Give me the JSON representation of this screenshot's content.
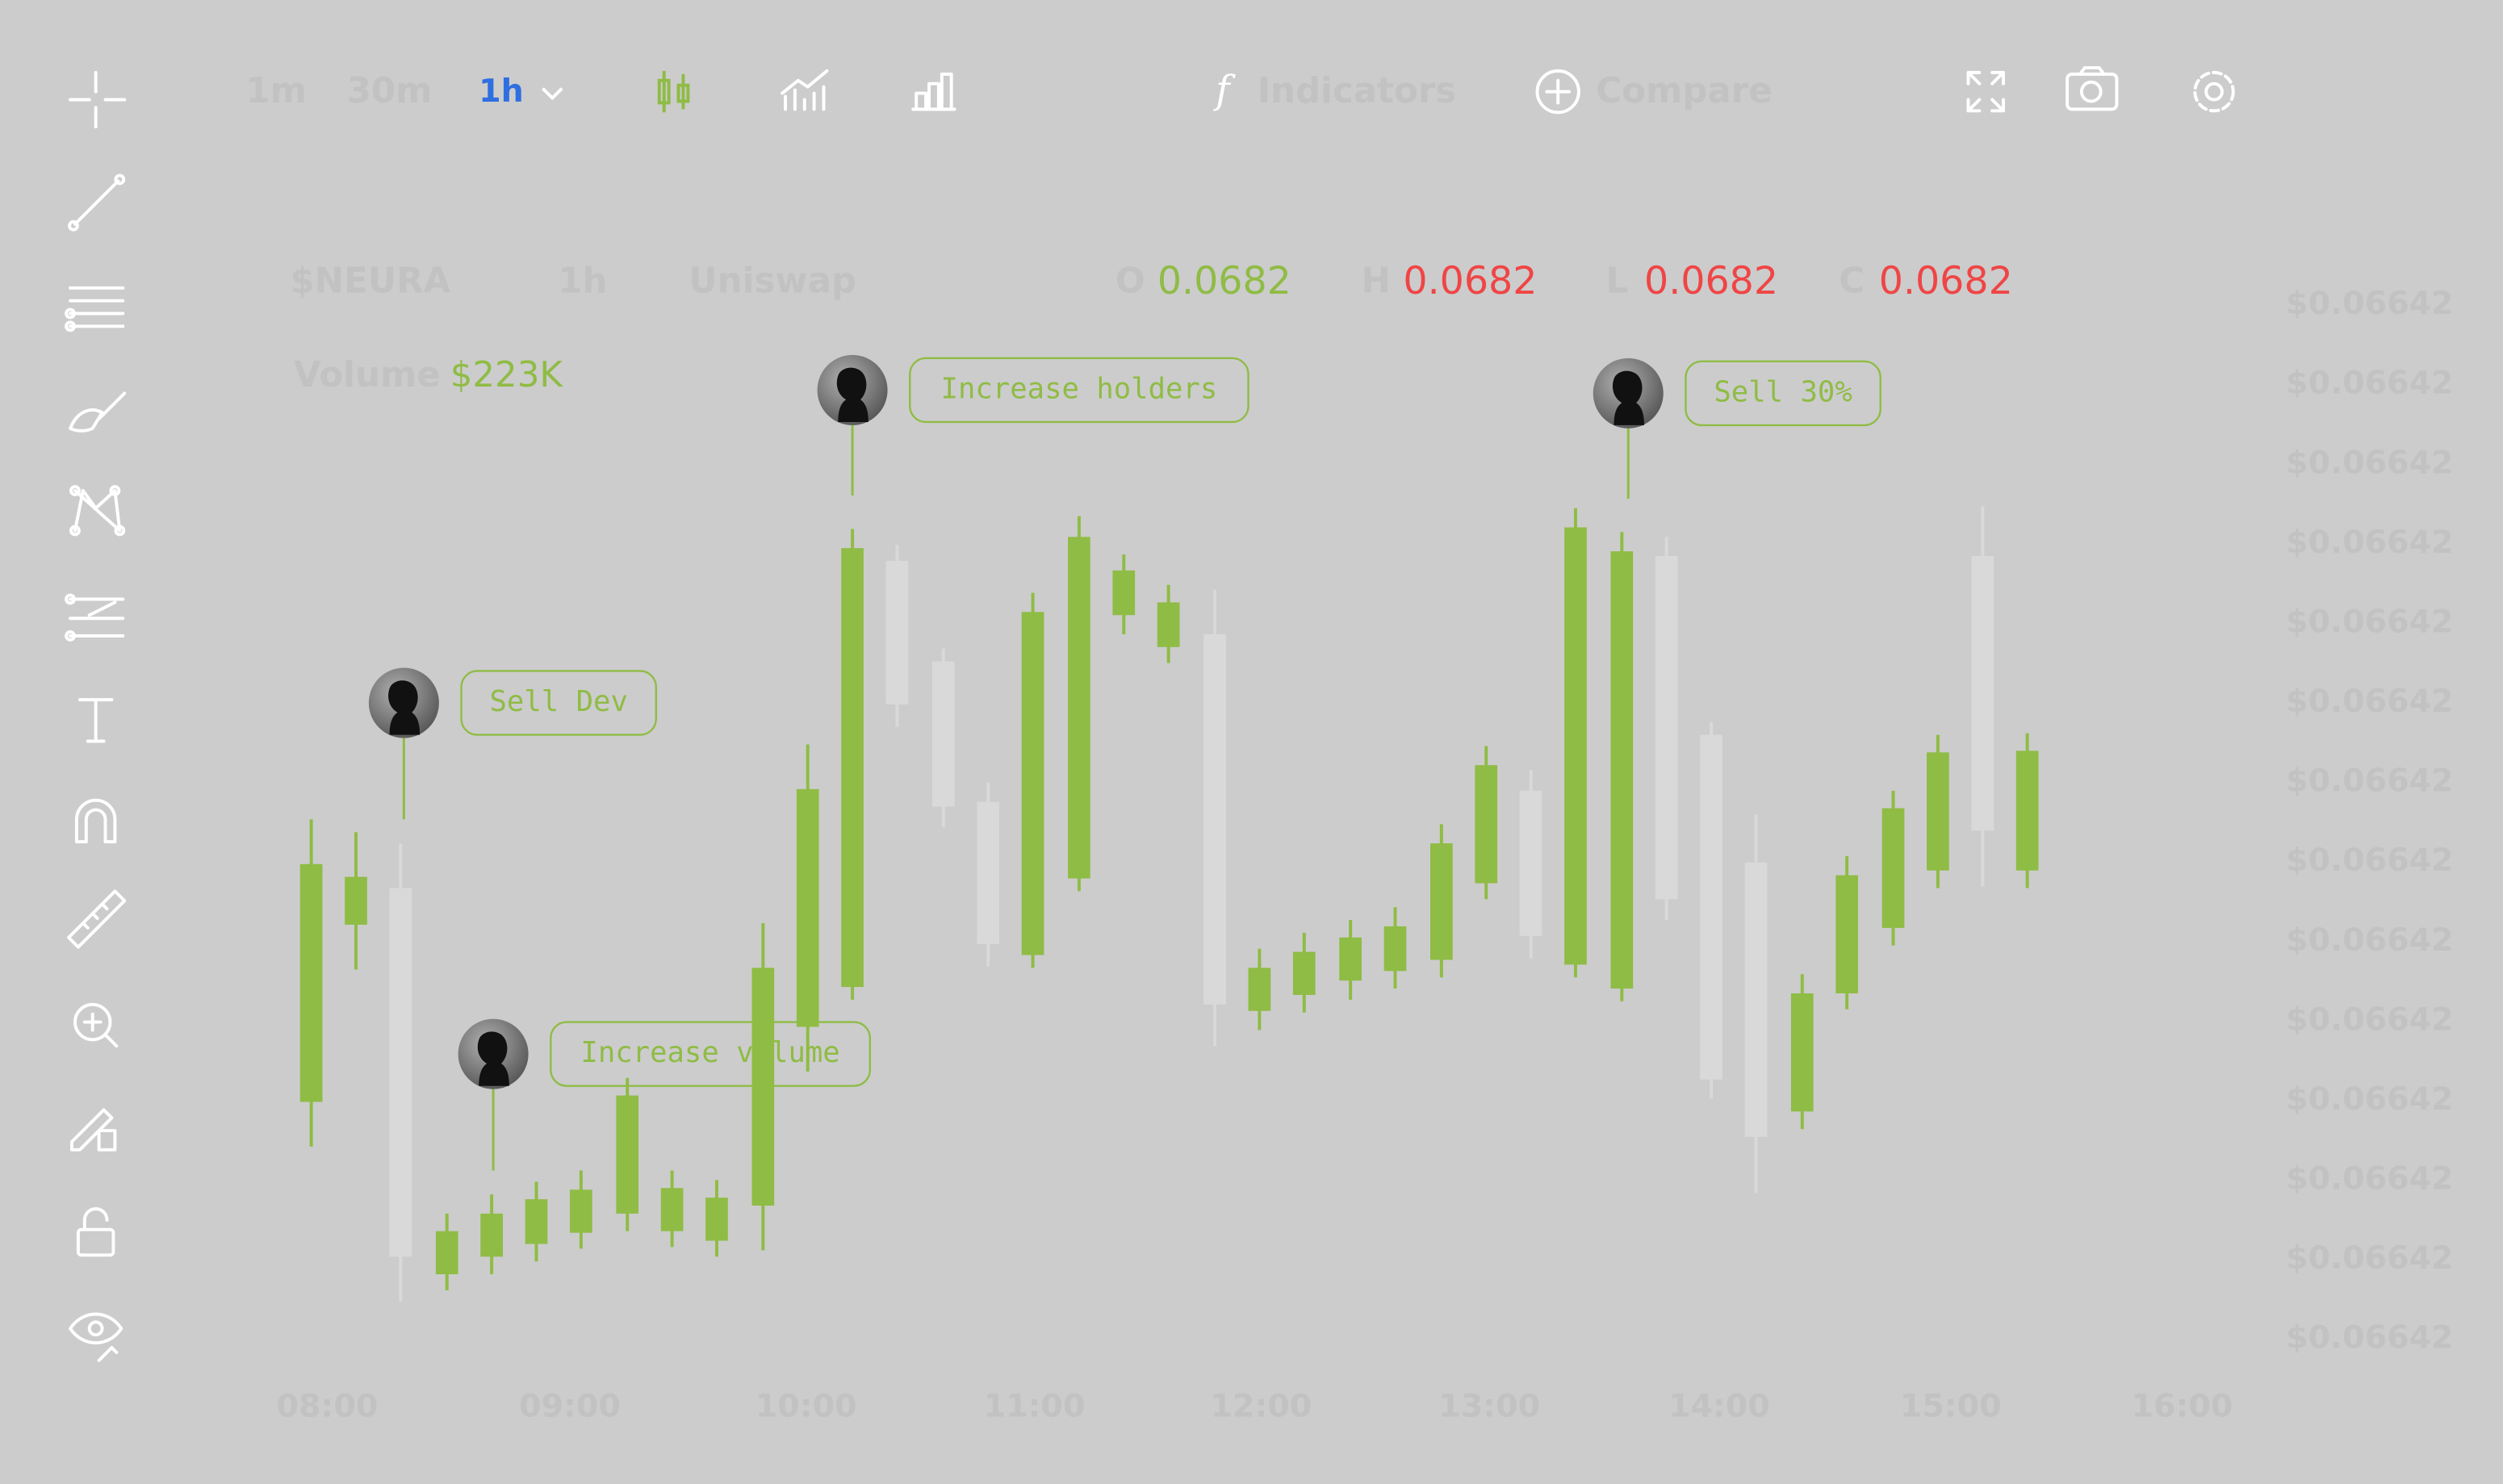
{
  "toolbar": {
    "timeframes": [
      "1m",
      "30m",
      "1h"
    ],
    "indicators": "Indicators",
    "compare": "Compare"
  },
  "header": {
    "symbol": "$NEURA",
    "interval": "1h",
    "exchange": "Uniswap",
    "ohlc": [
      {
        "label": "O",
        "value": "0.0682"
      },
      {
        "label": "H",
        "value": "0.0682"
      },
      {
        "label": "L",
        "value": "0.0682"
      },
      {
        "label": "C",
        "value": "0.0682"
      }
    ],
    "volume_label": "Volume",
    "volume_value": "$223K"
  },
  "annotations": [
    "Sell Dev",
    "Increase volume",
    "Increase holders",
    "Sell 30%"
  ],
  "y_axis_labels": [
    "$0.06642",
    "$0.06642",
    "$0.06642",
    "$0.06642",
    "$0.06642",
    "$0.06642",
    "$0.06642",
    "$0.06642",
    "$0.06642",
    "$0.06642",
    "$0.06642",
    "$0.06642",
    "$0.06642",
    "$0.06642"
  ],
  "x_axis_labels": [
    "08:00",
    "09:00",
    "10:00",
    "11:00",
    "12:00",
    "13:00",
    "14:00",
    "15:00",
    "16:00"
  ]
}
